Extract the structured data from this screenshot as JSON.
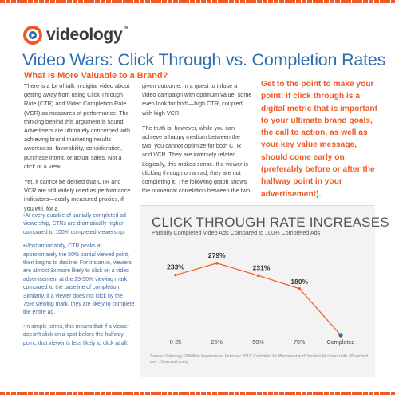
{
  "brand": {
    "name": "videology",
    "tm": "TM",
    "accent": "#f15a24",
    "blue": "#2b6db3"
  },
  "header": {
    "title": "Video Wars: Click Through vs. Completion Rates",
    "subtitle": "What Is More Valuable to a Brand?"
  },
  "body": {
    "col1_p1": "There is a lot of talk in digital video about getting away from using Click Through Rate (CTR) and Video Completion Rate (VCR) as measures of performance. The thinking behind this argument is sound. Advertisers are ultimately concerned with achieving brand marketing results—awareness, favorability, consideration, purchase intent, or actual sales. Not a click or a view.",
    "col1_p2": "Yet, it cannot be denied that CTR and VCR are still widely used as performance indicators—easily measured proxies, if you will, for a",
    "col2_p1": "given outcome. In a quest to infuse a video campaign with optimum value, some even look for both—high CTR, coupled with high VCR.",
    "col2_p2": "The truth is, however, while you can achieve a happy medium between the two, you cannot optimize for both CTR and VCR. They are inversely related. Logically, this makes sense. If a viewer is clicking through on an ad, they are not completing it. The following graph shows the numerical correlation between the two."
  },
  "pullquote": "Get to the point to make your point: if click through is a digital metric that is important to your ultimate brand goals, the call to action, as well as your key value message, should come early on (preferably before or after the halfway point in your advertisement).",
  "bullets": [
    "•At every quartile of partially completed ad viewership, CTRs are dramatically higher compared to 100% completed viewership.",
    "•Most importantly, CTR peaks at approximately the 50% partial viewed point, then begins to decline. For instance, viewers are almost 3x more likely to click on a video advertisement at the 25-50% viewing mark compared to the baseline of completion. Similarly, if a viewer does not click by the 75% viewing mark, they are likely to complete the entire ad.",
    "•In simple terms, this means that if a viewer doesn't click on a spot before the halfway point, that viewer is less likely to click at all."
  ],
  "chart": {
    "title": "CLICK THROUGH RATE INCREASES",
    "subtitle": "Partially Completed Video Ads Compared to 100% Completed Ads",
    "source": "Source: Videology, 20Million Impressions, February 2012, Controlled for Placement and Duration (Includes both :30 second and :15 second units)"
  },
  "chart_data": {
    "type": "line",
    "categories": [
      "0-25",
      "25%",
      "50%",
      "75%",
      "Completed"
    ],
    "values": [
      233,
      279,
      231,
      180,
      0
    ],
    "labels": [
      "233%",
      "279%",
      "231%",
      "180%",
      ""
    ],
    "title": "CLICK THROUGH RATE INCREASES",
    "subtitle": "Partially Completed Video Ads Compared to 100% Completed Ads",
    "xlabel": "",
    "ylabel": "",
    "ylim": [
      0,
      300
    ],
    "grid": false,
    "color": "#f15a24"
  }
}
